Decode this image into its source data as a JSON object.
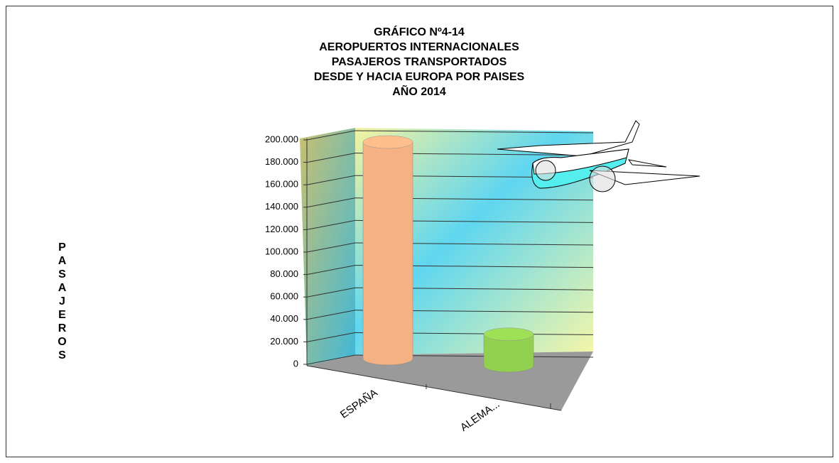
{
  "chart_data": {
    "type": "bar3d",
    "title": [
      "GRÁFICO Nº4-14",
      "AEROPUERTOS INTERNACIONALES",
      "PASAJEROS TRANSPORTADOS",
      "DESDE Y HACIA EUROPA POR PAISES",
      "AÑO 2014"
    ],
    "y_label": "PASAJEROS",
    "categories": [
      "ESPAÑA",
      "ALEMA..."
    ],
    "values": [
      193000,
      28000
    ],
    "colors": [
      "#f4b183",
      "#92d050"
    ],
    "ylim": [
      0,
      200000
    ],
    "yticks": [
      0,
      {
        "value": 20000,
        "label": "20.000"
      },
      {
        "value": 40000,
        "label": "40.000"
      },
      {
        "value": 60000,
        "label": "60.000"
      },
      {
        "value": 80000,
        "label": "80.000"
      },
      {
        "value": 100000,
        "label": "100.000"
      },
      {
        "value": 120000,
        "label": "120.000"
      },
      {
        "value": 140000,
        "label": "140.000"
      },
      {
        "value": 160000,
        "label": "160.000"
      },
      {
        "value": 180000,
        "label": "180.000"
      },
      {
        "value": 200000,
        "label": "200.000"
      }
    ],
    "grid": true
  }
}
